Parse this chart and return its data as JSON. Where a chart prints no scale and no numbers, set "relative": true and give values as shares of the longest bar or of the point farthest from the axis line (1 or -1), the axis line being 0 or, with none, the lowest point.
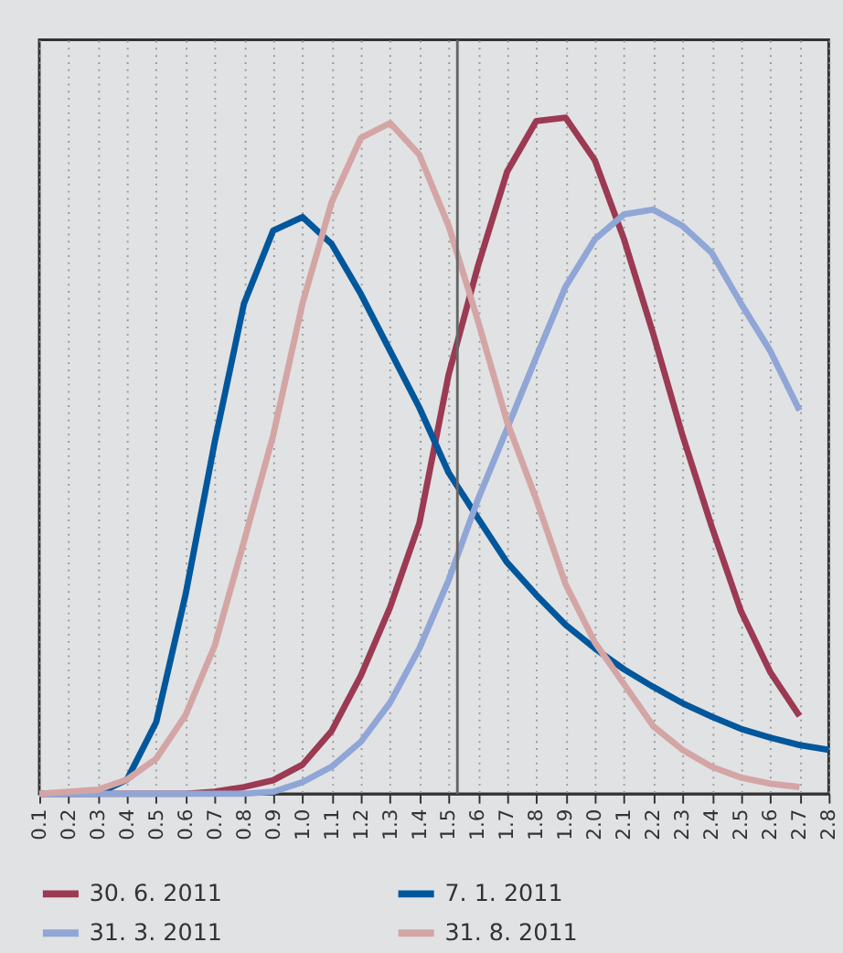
{
  "chart_data": {
    "type": "line",
    "relative": true,
    "x": [
      0.1,
      0.2,
      0.3,
      0.4,
      0.5,
      0.6,
      0.7,
      0.8,
      0.9,
      1.0,
      1.1,
      1.2,
      1.3,
      1.4,
      1.5,
      1.6,
      1.7,
      1.8,
      1.9,
      2.0,
      2.1,
      2.2,
      2.3,
      2.4,
      2.5,
      2.6,
      2.7,
      2.8
    ],
    "xlim": [
      0.1,
      2.8
    ],
    "xticks": [
      0.1,
      0.2,
      0.3,
      0.4,
      0.5,
      0.6,
      0.7,
      0.8,
      0.9,
      {
        "value": 1,
        "label": "1.0"
      },
      1.1,
      1.2,
      1.3,
      1.4,
      1.5,
      1.6,
      1.7,
      1.8,
      1.9,
      {
        "value": 2,
        "label": "2.0"
      },
      2.1,
      2.2,
      2.3,
      2.4,
      2.5,
      2.6,
      2.7,
      2.8
    ],
    "series": [
      {
        "name": "30. 6. 2011",
        "color": "#9b3a52",
        "values": [
          0,
          0,
          0,
          0,
          0,
          0,
          0.003,
          0.01,
          0.02,
          0.043,
          0.093,
          0.175,
          0.276,
          0.4,
          0.62,
          0.78,
          0.92,
          0.995,
          1.0,
          0.937,
          0.82,
          0.68,
          0.53,
          0.395,
          0.27,
          0.18,
          0.115,
          null
        ]
      },
      {
        "name": "7. 1. 2011",
        "color": "#00579c",
        "values": [
          0,
          0,
          0,
          0.021,
          0.106,
          0.294,
          0.52,
          0.725,
          0.833,
          0.853,
          0.813,
          0.739,
          0.655,
          0.571,
          0.475,
          0.408,
          0.342,
          0.294,
          0.25,
          0.215,
          0.184,
          0.158,
          0.134,
          0.114,
          0.096,
          0.083,
          0.072,
          0.065
        ]
      },
      {
        "name": "31. 3. 2011",
        "color": "#8fa6d6",
        "values": [
          0,
          0,
          0,
          0,
          0,
          0,
          0,
          0,
          0.003,
          0.017,
          0.04,
          0.077,
          0.135,
          0.215,
          0.316,
          0.435,
          0.54,
          0.646,
          0.75,
          0.82,
          0.857,
          0.864,
          0.84,
          0.8,
          0.725,
          0.655,
          0.567,
          null
        ]
      },
      {
        "name": "31. 8. 2011",
        "color": "#d4a5a5",
        "values": [
          0,
          0.003,
          0.006,
          0.021,
          0.052,
          0.116,
          0.219,
          0.373,
          0.53,
          0.725,
          0.875,
          0.97,
          0.992,
          0.945,
          0.84,
          0.7,
          0.55,
          0.435,
          0.31,
          0.224,
          0.162,
          0.1,
          0.065,
          0.04,
          0.024,
          0.015,
          0.01,
          null
        ]
      }
    ],
    "ref_lines": [
      {
        "axis": "x",
        "value": 1.53,
        "color": "#666666"
      }
    ],
    "grid": "x",
    "legend": "bottom",
    "marker": "none",
    "line_style": "solid"
  }
}
